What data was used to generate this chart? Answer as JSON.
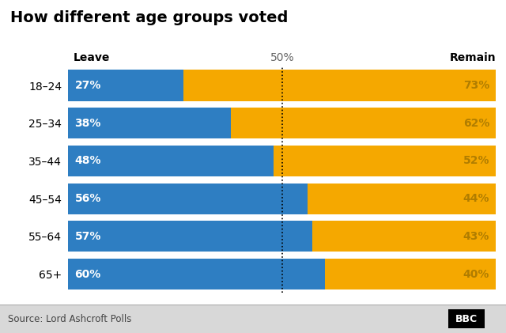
{
  "title": "How different age groups voted",
  "age_groups": [
    "18–24",
    "25–34",
    "35–44",
    "45–54",
    "55–64",
    "65+"
  ],
  "leave_pct": [
    27,
    38,
    48,
    56,
    57,
    60
  ],
  "remain_pct": [
    73,
    62,
    52,
    44,
    43,
    40
  ],
  "leave_color": "#2e7ec2",
  "remain_color": "#f5a800",
  "leave_label": "Leave",
  "remain_label": "Remain",
  "fifty_pct_label": "50%",
  "source_text": "Source: Lord Ashcroft Polls",
  "bbc_text": "BBC",
  "bg_color": "#ffffff",
  "footer_bg": "#d8d8d8",
  "bar_text_color": "#ffffff",
  "remain_text_color": "#b07d00",
  "title_fontsize": 14,
  "label_fontsize": 10,
  "bar_fontsize": 10,
  "header_fontsize": 10,
  "source_fontsize": 8.5
}
